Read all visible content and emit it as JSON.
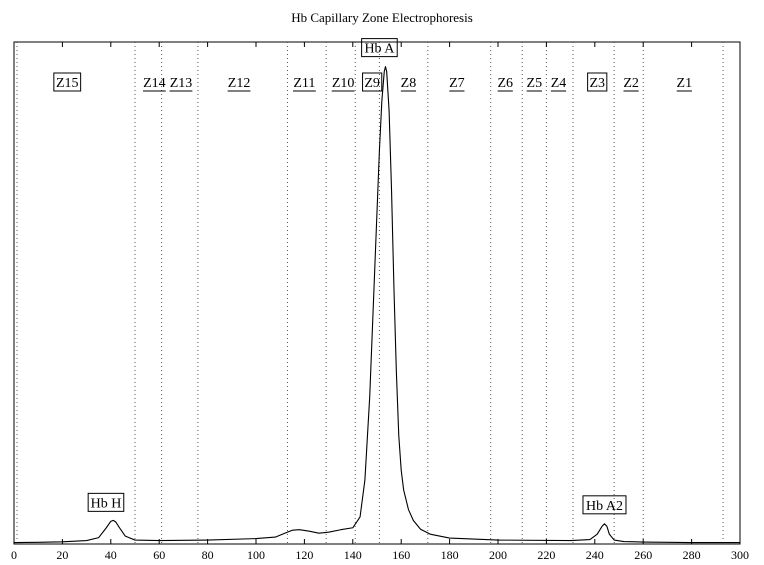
{
  "chart_data": {
    "type": "line",
    "title": "Hb Capillary Zone Electrophoresis",
    "xlabel": "",
    "ylabel": "",
    "xlim": [
      0,
      300
    ],
    "grid": false,
    "x_ticks": [
      0,
      20,
      40,
      60,
      80,
      100,
      120,
      140,
      160,
      180,
      200,
      220,
      240,
      260,
      280,
      300
    ],
    "zone_boundaries": [
      50,
      61,
      76,
      113,
      129,
      141,
      151,
      171,
      197,
      210,
      220,
      231,
      248,
      260,
      293
    ],
    "zones": [
      {
        "label": "Z15",
        "x": 22,
        "boxed": true
      },
      {
        "label": "Z14",
        "x": 58,
        "boxed": false
      },
      {
        "label": "Z13",
        "x": 69,
        "boxed": false
      },
      {
        "label": "Z12",
        "x": 93,
        "boxed": false
      },
      {
        "label": "Z11",
        "x": 120,
        "boxed": false
      },
      {
        "label": "Z10",
        "x": 136,
        "boxed": false
      },
      {
        "label": "Z9",
        "x": 148,
        "boxed": true
      },
      {
        "label": "Z8",
        "x": 163,
        "boxed": false
      },
      {
        "label": "Z7",
        "x": 183,
        "boxed": false
      },
      {
        "label": "Z6",
        "x": 203,
        "boxed": false
      },
      {
        "label": "Z5",
        "x": 215,
        "boxed": false
      },
      {
        "label": "Z4",
        "x": 225,
        "boxed": false
      },
      {
        "label": "Z3",
        "x": 241,
        "boxed": true
      },
      {
        "label": "Z2",
        "x": 255,
        "boxed": false
      },
      {
        "label": "Z1",
        "x": 277,
        "boxed": false
      }
    ],
    "peaks": [
      {
        "label": "Hb H",
        "x": 38,
        "at": 40
      },
      {
        "label": "Hb A",
        "x": 151,
        "at": 153.5
      },
      {
        "label": "Hb A2",
        "x": 244,
        "at": 244
      }
    ],
    "series": [
      {
        "x": [
          0,
          10,
          20,
          30,
          35,
          38,
          40,
          41,
          42,
          44,
          46,
          50,
          60,
          80,
          100,
          108,
          112,
          115,
          118,
          122,
          126,
          130,
          135,
          140,
          143,
          145,
          147,
          149,
          151,
          152,
          153,
          153.5,
          154,
          155,
          156,
          157,
          158,
          159,
          160,
          161,
          163,
          165,
          168,
          172,
          180,
          200,
          230,
          238,
          241,
          243,
          244,
          245,
          246,
          248,
          252,
          260,
          280,
          300
        ],
        "y": [
          0.3,
          0.35,
          0.45,
          0.7,
          1.3,
          3.2,
          4.6,
          4.8,
          4.5,
          3.0,
          1.6,
          0.8,
          0.7,
          0.8,
          1.1,
          1.4,
          2.2,
          2.8,
          2.9,
          2.6,
          2.2,
          2.4,
          2.9,
          3.3,
          5.5,
          13,
          30,
          55,
          80,
          90,
          96,
          97,
          96,
          88,
          72,
          52,
          35,
          22,
          15,
          11,
          7,
          4.8,
          3.0,
          2.0,
          1.2,
          0.8,
          0.7,
          0.9,
          2.0,
          3.6,
          4.1,
          3.6,
          2.0,
          0.8,
          0.5,
          0.4,
          0.3,
          0.3
        ]
      }
    ]
  }
}
